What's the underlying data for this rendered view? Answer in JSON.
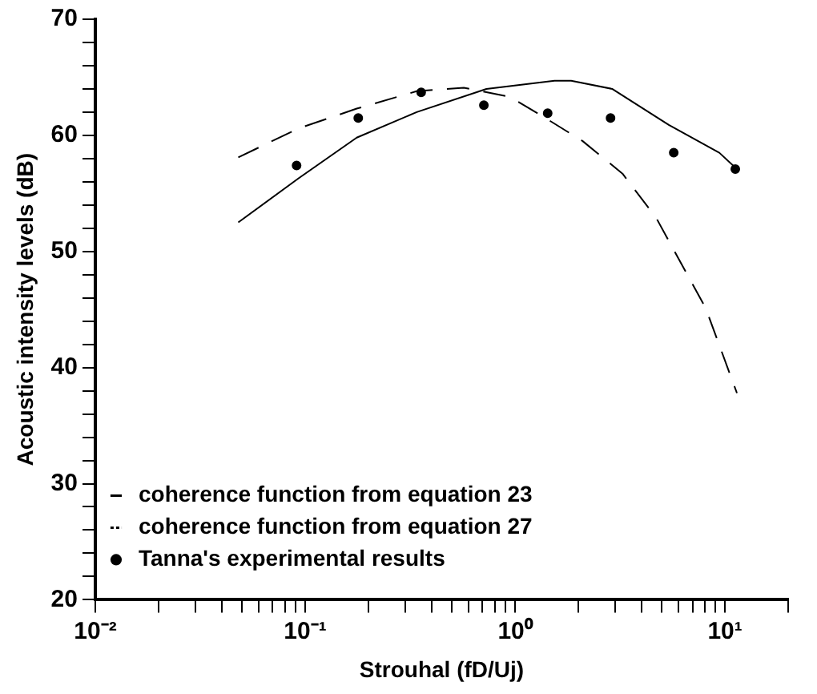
{
  "chart_data": {
    "type": "line",
    "xlabel": "Strouhal (fD/Uj)",
    "ylabel": "Acoustic intensity levels (dB)",
    "log": "x",
    "grid": false,
    "legend": "bottom",
    "xlim": [
      0.01,
      20
    ],
    "xticks": [
      {
        "value": 0.01,
        "label": "10⁻²"
      },
      {
        "value": 0.02,
        "label": null
      },
      {
        "value": 0.03,
        "label": null
      },
      {
        "value": 0.04,
        "label": null
      },
      {
        "value": 0.05,
        "label": null
      },
      {
        "value": 0.06,
        "label": null
      },
      {
        "value": 0.07,
        "label": null
      },
      {
        "value": 0.08,
        "label": null
      },
      {
        "value": 0.09,
        "label": null
      },
      {
        "value": 0.1,
        "label": "10⁻¹"
      },
      {
        "value": 0.2,
        "label": null
      },
      {
        "value": 0.3,
        "label": null
      },
      {
        "value": 0.4,
        "label": null
      },
      {
        "value": 0.5,
        "label": null
      },
      {
        "value": 0.6,
        "label": null
      },
      {
        "value": 0.7,
        "label": null
      },
      {
        "value": 0.8,
        "label": null
      },
      {
        "value": 0.9,
        "label": null
      },
      {
        "value": 1,
        "label": "10⁰"
      },
      {
        "value": 2,
        "label": null
      },
      {
        "value": 3,
        "label": null
      },
      {
        "value": 4,
        "label": null
      },
      {
        "value": 5,
        "label": null
      },
      {
        "value": 6,
        "label": null
      },
      {
        "value": 7,
        "label": null
      },
      {
        "value": 8,
        "label": null
      },
      {
        "value": 9,
        "label": null
      },
      {
        "value": 10,
        "label": "10¹"
      },
      {
        "value": 20,
        "label": null
      }
    ],
    "ylim": [
      20,
      70
    ],
    "yticks": [
      20,
      {
        "value": 22,
        "label": null
      },
      {
        "value": 24,
        "label": null
      },
      {
        "value": 26,
        "label": null
      },
      {
        "value": 28,
        "label": null
      },
      30,
      {
        "value": 32,
        "label": null
      },
      {
        "value": 34,
        "label": null
      },
      {
        "value": 36,
        "label": null
      },
      {
        "value": 38,
        "label": null
      },
      40,
      {
        "value": 42,
        "label": null
      },
      {
        "value": 44,
        "label": null
      },
      {
        "value": 46,
        "label": null
      },
      {
        "value": 48,
        "label": null
      },
      50,
      {
        "value": 52,
        "label": null
      },
      {
        "value": 54,
        "label": null
      },
      {
        "value": 56,
        "label": null
      },
      {
        "value": 58,
        "label": null
      },
      60,
      {
        "value": 62,
        "label": null
      },
      {
        "value": 64,
        "label": null
      },
      {
        "value": 66,
        "label": null
      },
      {
        "value": 68,
        "label": null
      },
      70
    ],
    "series": [
      {
        "name": "coherence function from equation 23",
        "color": "#000000",
        "line_style": "solid",
        "marker": "none",
        "x": [
          0.048,
          0.093,
          0.176,
          0.34,
          0.73,
          1.54,
          1.85,
          2.9,
          5.4,
          9.4,
          11.4
        ],
        "values": [
          52.5,
          56.3,
          59.8,
          62.0,
          64.0,
          64.7,
          64.7,
          64.0,
          60.9,
          58.5,
          57.1
        ]
      },
      {
        "name": "coherence function from equation 27",
        "color": "#000000",
        "line_style": "dashed",
        "marker": "none",
        "x": [
          0.048,
          0.093,
          0.176,
          0.34,
          0.57,
          0.95,
          1.45,
          2.1,
          3.25,
          4.7,
          8.1,
          11.4
        ],
        "values": [
          58.1,
          60.6,
          62.3,
          63.8,
          64.1,
          63.3,
          61.3,
          59.5,
          56.7,
          52.9,
          45.1,
          37.8
        ]
      },
      {
        "name": "Tanna's experimental results",
        "color": "#000000",
        "type": "scatter",
        "marker": "circle",
        "x": [
          0.091,
          0.179,
          0.357,
          0.71,
          1.43,
          2.85,
          5.7,
          11.2
        ],
        "values": [
          57.4,
          61.5,
          63.7,
          62.6,
          61.9,
          61.5,
          58.5,
          57.1
        ]
      }
    ]
  }
}
